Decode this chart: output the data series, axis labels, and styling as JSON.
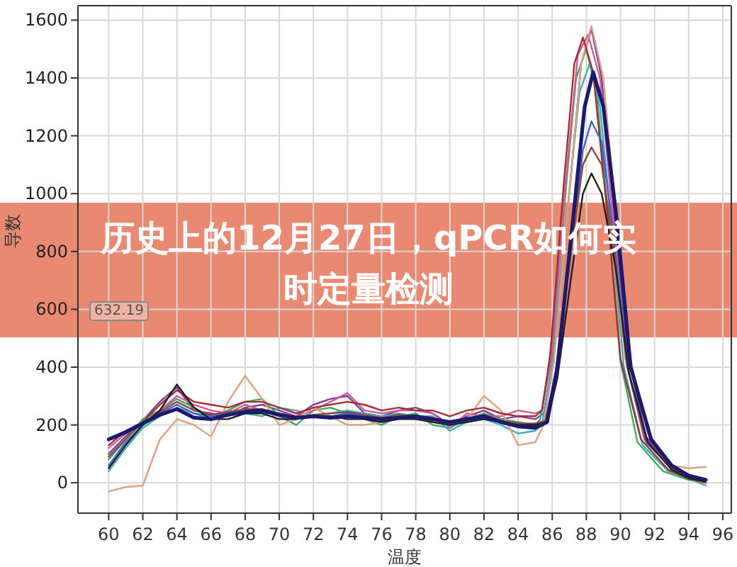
{
  "chart_data": {
    "type": "line",
    "title": "历史上的12月27日，qPCR如何实时定量检测",
    "xlabel": "温度",
    "ylabel": "导数",
    "annotations": [
      "632.19"
    ],
    "xlim": [
      58.2,
      96.5
    ],
    "xticks": [
      60,
      62,
      64,
      66,
      68,
      70,
      72,
      74,
      76,
      78,
      80,
      82,
      84,
      86,
      88,
      90,
      92,
      94,
      96
    ],
    "ylim": [
      -105,
      1650
    ],
    "yticks": [
      0,
      200,
      400,
      600,
      800,
      1000,
      1200,
      1400,
      1600
    ],
    "grid": true,
    "marker": "none",
    "line_style": "solid",
    "series": [
      {
        "color": "#7b3f9e",
        "x": [
          60,
          61,
          62,
          63,
          64,
          65,
          66,
          67,
          68,
          69,
          70,
          71,
          72,
          73,
          74,
          75,
          76,
          77,
          78,
          79,
          80,
          81,
          82,
          83,
          84,
          85,
          85.5,
          86,
          87,
          87.7,
          88.3,
          88.9,
          89.6,
          90.4,
          91.5,
          93,
          94,
          95
        ],
        "values": [
          100,
          160,
          215,
          280,
          330,
          250,
          240,
          230,
          260,
          270,
          250,
          230,
          270,
          290,
          300,
          240,
          230,
          250,
          260,
          240,
          200,
          230,
          250,
          220,
          230,
          220,
          240,
          400,
          1000,
          1450,
          1570,
          1400,
          950,
          450,
          160,
          50,
          20,
          5
        ]
      },
      {
        "color": "#3daa6a",
        "x": [
          60,
          61,
          62,
          63,
          64,
          65,
          66,
          67,
          68,
          69,
          70,
          71,
          72,
          73,
          74,
          75,
          76,
          77,
          78,
          79,
          80,
          81,
          82,
          83,
          84,
          85,
          85.3,
          85.8,
          86.7,
          87.4,
          88.0,
          88.6,
          89.3,
          90.0,
          91.0,
          92.5,
          94,
          95
        ],
        "values": [
          80,
          150,
          220,
          250,
          290,
          260,
          230,
          250,
          280,
          290,
          230,
          200,
          250,
          260,
          240,
          220,
          200,
          230,
          240,
          200,
          190,
          220,
          240,
          220,
          210,
          200,
          220,
          400,
          950,
          1400,
          1500,
          1350,
          900,
          420,
          140,
          40,
          10,
          0
        ]
      },
      {
        "color": "#3fb0b8",
        "x": [
          60,
          61,
          62,
          63,
          64,
          65,
          66,
          67,
          68,
          69,
          70,
          71,
          72,
          73,
          74,
          75,
          76,
          77,
          78,
          79,
          80,
          81,
          82,
          83,
          84,
          85,
          85.4,
          86,
          86.9,
          87.6,
          88.2,
          88.8,
          89.5,
          90.2,
          91.3,
          92.8,
          94,
          95
        ],
        "values": [
          40,
          120,
          190,
          230,
          260,
          240,
          220,
          250,
          240,
          230,
          260,
          250,
          230,
          240,
          250,
          240,
          230,
          240,
          230,
          230,
          180,
          210,
          220,
          200,
          170,
          180,
          200,
          420,
          950,
          1350,
          1450,
          1300,
          880,
          400,
          130,
          40,
          15,
          -10
        ]
      },
      {
        "color": "#d05a9a",
        "x": [
          60,
          61,
          62,
          63,
          64,
          65,
          66,
          67,
          68,
          69,
          70,
          71,
          72,
          73,
          74,
          75,
          76,
          77,
          78,
          79,
          80,
          81,
          82,
          83,
          84,
          85,
          85.4,
          86,
          86.8,
          87.5,
          88.1,
          88.8,
          89.5,
          90.3,
          91.4,
          93,
          94,
          95
        ],
        "values": [
          120,
          170,
          200,
          250,
          300,
          270,
          250,
          240,
          270,
          250,
          240,
          230,
          250,
          280,
          310,
          250,
          240,
          250,
          250,
          240,
          190,
          240,
          230,
          230,
          250,
          240,
          250,
          450,
          1050,
          1480,
          1550,
          1400,
          950,
          430,
          150,
          50,
          15,
          0
        ]
      },
      {
        "color": "#e0a080",
        "x": [
          60,
          61,
          62,
          63,
          64,
          65,
          66,
          67,
          68,
          69,
          70,
          71,
          72,
          73,
          74,
          75,
          76,
          77,
          78,
          79,
          80,
          81,
          82,
          83,
          84,
          85,
          85.5,
          86.1,
          87,
          87.7,
          88.3,
          89,
          89.7,
          90.5,
          91.6,
          93,
          94,
          95
        ],
        "values": [
          -30,
          -15,
          -10,
          150,
          220,
          200,
          160,
          280,
          370,
          290,
          200,
          220,
          260,
          230,
          200,
          200,
          210,
          220,
          230,
          210,
          200,
          220,
          300,
          250,
          130,
          140,
          200,
          420,
          1000,
          1450,
          1580,
          1400,
          950,
          450,
          170,
          60,
          50,
          55
        ]
      },
      {
        "color": "#a03030",
        "x": [
          60,
          61,
          62,
          63,
          64,
          65,
          66,
          67,
          68,
          69,
          70,
          71,
          72,
          73,
          74,
          75,
          76,
          77,
          78,
          79,
          80,
          81,
          82,
          83,
          84,
          85,
          85.4,
          85.9,
          86.7,
          87.3,
          87.8,
          88.4,
          89.2,
          90,
          91.2,
          92.8,
          94,
          95
        ],
        "values": [
          130,
          180,
          210,
          270,
          320,
          280,
          270,
          260,
          280,
          280,
          260,
          240,
          260,
          270,
          280,
          270,
          250,
          260,
          250,
          250,
          230,
          250,
          260,
          240,
          230,
          230,
          250,
          450,
          1050,
          1450,
          1540,
          1420,
          950,
          430,
          150,
          45,
          15,
          0
        ]
      },
      {
        "color": "#4060d0",
        "x": [
          60,
          61,
          62,
          63,
          64,
          65,
          66,
          67,
          68,
          69,
          70,
          71,
          72,
          73,
          74,
          75,
          76,
          77,
          78,
          79,
          80,
          81,
          82,
          83,
          84,
          85,
          85.6,
          86.2,
          87.1,
          87.8,
          88.3,
          88.9,
          89.6,
          90.4,
          91.5,
          93,
          94,
          95
        ],
        "values": [
          60,
          140,
          200,
          240,
          270,
          240,
          230,
          240,
          250,
          250,
          230,
          220,
          230,
          230,
          240,
          230,
          220,
          230,
          220,
          220,
          200,
          215,
          225,
          210,
          200,
          200,
          210,
          380,
          800,
          1150,
          1250,
          1180,
          850,
          400,
          140,
          50,
          20,
          5
        ]
      },
      {
        "color": "#8a4a3a",
        "x": [
          60,
          61,
          62,
          63,
          64,
          65,
          66,
          67,
          68,
          69,
          70,
          71,
          72,
          73,
          74,
          75,
          76,
          77,
          78,
          79,
          80,
          81,
          82,
          83,
          84,
          85,
          85.6,
          86.2,
          87.1,
          87.8,
          88.3,
          88.9,
          89.6,
          90.4,
          91.5,
          93,
          94,
          95
        ],
        "values": [
          90,
          150,
          210,
          245,
          280,
          250,
          235,
          245,
          255,
          255,
          240,
          225,
          235,
          240,
          245,
          235,
          225,
          235,
          230,
          225,
          205,
          220,
          235,
          215,
          205,
          205,
          215,
          380,
          800,
          1100,
          1160,
          1100,
          820,
          400,
          150,
          50,
          20,
          5
        ]
      },
      {
        "color": "#202020",
        "x": [
          60,
          61,
          62,
          63,
          64,
          65,
          66,
          67,
          68,
          69,
          70,
          71,
          72,
          73,
          74,
          75,
          76,
          77,
          78,
          79,
          80,
          81,
          82,
          83,
          84,
          85,
          85.7,
          86.3,
          87.2,
          87.8,
          88.3,
          88.9,
          89.7,
          90.5,
          91.6,
          93,
          94,
          95
        ],
        "values": [
          50,
          130,
          200,
          250,
          340,
          260,
          220,
          220,
          240,
          240,
          220,
          220,
          230,
          230,
          220,
          220,
          210,
          220,
          220,
          210,
          200,
          210,
          220,
          210,
          200,
          200,
          210,
          360,
          750,
          1000,
          1070,
          1000,
          750,
          380,
          140,
          45,
          15,
          5
        ]
      },
      {
        "color": "#1a1a6e",
        "x": [
          60,
          61,
          62,
          63,
          64,
          65,
          66,
          67,
          68,
          69,
          70,
          71,
          72,
          73,
          74,
          75,
          76,
          77,
          78,
          79,
          80,
          81,
          82,
          83,
          84,
          85,
          85.7,
          86.3,
          87.2,
          87.9,
          88.4,
          89,
          89.8,
          90.6,
          91.8,
          93,
          94,
          95
        ],
        "values": [
          150,
          175,
          205,
          235,
          255,
          225,
          220,
          235,
          245,
          250,
          235,
          225,
          230,
          225,
          230,
          225,
          220,
          225,
          230,
          220,
          210,
          220,
          230,
          210,
          195,
          190,
          210,
          400,
          900,
          1300,
          1420,
          1300,
          900,
          400,
          150,
          60,
          25,
          10
        ]
      }
    ]
  }
}
